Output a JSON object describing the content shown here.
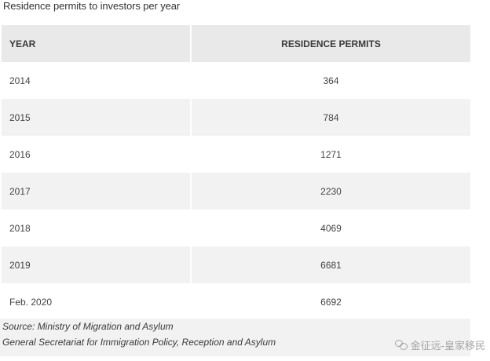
{
  "chart_data": {
    "type": "table",
    "title": "Residence permits to investors per year",
    "columns": [
      "YEAR",
      "RESIDENCE PERMITS"
    ],
    "rows": [
      [
        "2014",
        "364"
      ],
      [
        "2015",
        "784"
      ],
      [
        "2016",
        "1271"
      ],
      [
        "2017",
        "2230"
      ],
      [
        "2018",
        "4069"
      ],
      [
        "2019",
        "6681"
      ],
      [
        "Feb. 2020",
        "6692"
      ]
    ],
    "source": [
      "Source: Ministry of Migration and Asylum",
      "General Secretariat for Immigration Policy, Reception and Asylum"
    ]
  },
  "watermark": "金征远-皇家移民",
  "colors": {
    "header_bg": "#e9e9e9",
    "stripe_bg": "#f2f2f2",
    "text": "#444444"
  }
}
